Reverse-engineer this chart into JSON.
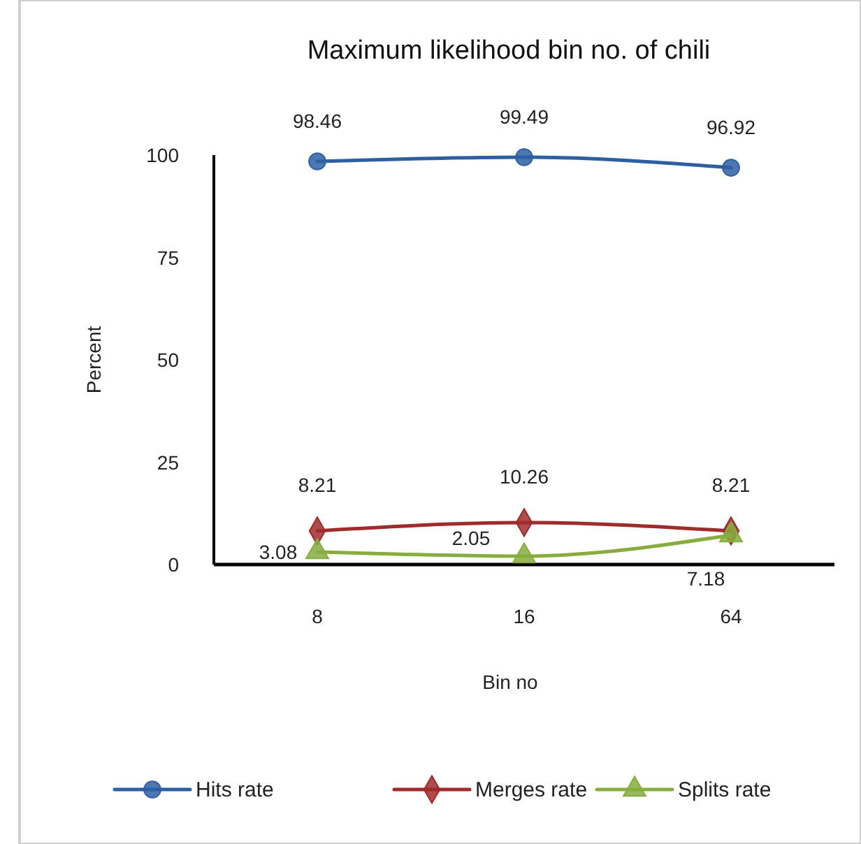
{
  "chart_data": {
    "type": "line",
    "title": "Maximum likelihood bin no. of chili",
    "xlabel": "Bin no",
    "ylabel": "Percent",
    "categories": [
      "8",
      "16",
      "64"
    ],
    "ylim": [
      0,
      100
    ],
    "yticks": [
      0,
      25,
      50,
      75,
      100
    ],
    "grid": false,
    "legend": "bottom",
    "data_labels": true,
    "series": [
      {
        "name": "Hits rate",
        "color": "#2e5fa3",
        "marker": "circle",
        "values": [
          98.46,
          99.49,
          96.92
        ]
      },
      {
        "name": "Merges rate",
        "color": "#a02b2b",
        "marker": "diamond",
        "values": [
          8.21,
          10.26,
          8.21
        ]
      },
      {
        "name": "Splits rate",
        "color": "#86ad3e",
        "marker": "triangle",
        "values": [
          3.08,
          2.05,
          7.18
        ]
      }
    ]
  }
}
